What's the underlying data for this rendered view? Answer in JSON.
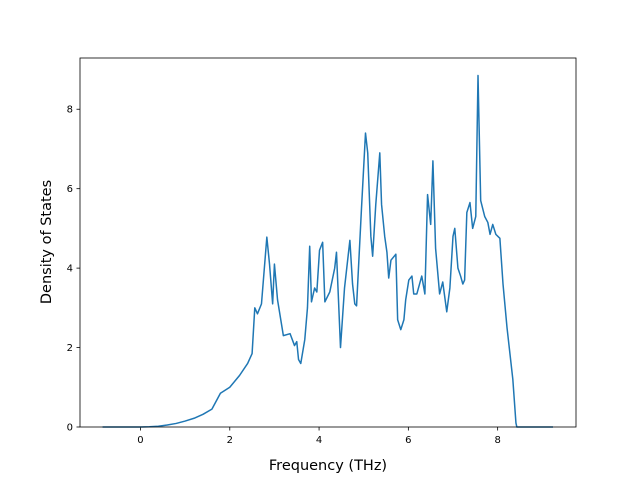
{
  "chart_data": {
    "type": "line",
    "xlabel": "Frequency (THz)",
    "ylabel": "Density of States",
    "xlim": [
      -1.355,
      9.755
    ],
    "ylim": [
      0,
      9.29
    ],
    "xticks": [
      0,
      2,
      4,
      6,
      8
    ],
    "yticks": [
      0,
      2,
      4,
      6,
      8
    ],
    "color": "#1f77b4",
    "x": [
      -0.85,
      -0.4,
      0,
      0.2,
      0.4,
      0.6,
      0.8,
      1.0,
      1.2,
      1.4,
      1.6,
      1.79,
      2.0,
      2.22,
      2.4,
      2.5,
      2.56,
      2.62,
      2.71,
      2.83,
      2.89,
      2.96,
      3.0,
      3.07,
      3.2,
      3.35,
      3.45,
      3.5,
      3.54,
      3.59,
      3.68,
      3.74,
      3.79,
      3.83,
      3.9,
      3.95,
      4.01,
      4.08,
      4.13,
      4.24,
      4.35,
      4.39,
      4.48,
      4.57,
      4.69,
      4.75,
      4.8,
      4.84,
      4.95,
      5.04,
      5.09,
      5.16,
      5.2,
      5.27,
      5.36,
      5.4,
      5.47,
      5.52,
      5.56,
      5.61,
      5.72,
      5.76,
      5.83,
      5.9,
      5.94,
      6.01,
      6.08,
      6.12,
      6.19,
      6.3,
      6.37,
      6.43,
      6.5,
      6.55,
      6.61,
      6.7,
      6.77,
      6.86,
      6.93,
      7.0,
      7.04,
      7.11,
      7.17,
      7.22,
      7.26,
      7.31,
      7.38,
      7.44,
      7.51,
      7.56,
      7.62,
      7.71,
      7.78,
      7.83,
      7.89,
      7.96,
      8.05,
      8.12,
      8.21,
      8.27,
      8.34,
      8.41,
      8.43,
      9.24
    ],
    "values": [
      0,
      0,
      0,
      0.005,
      0.02,
      0.05,
      0.09,
      0.15,
      0.22,
      0.32,
      0.45,
      0.85,
      1.0,
      1.3,
      1.6,
      1.85,
      3.0,
      2.85,
      3.1,
      4.78,
      4.1,
      3.1,
      4.1,
      3.2,
      2.3,
      2.35,
      2.05,
      2.15,
      1.7,
      1.6,
      2.2,
      3.0,
      4.55,
      3.15,
      3.5,
      3.4,
      4.45,
      4.65,
      3.15,
      3.4,
      4.0,
      4.4,
      2.0,
      3.5,
      4.7,
      3.6,
      3.1,
      3.05,
      5.5,
      7.4,
      6.9,
      4.8,
      4.3,
      5.6,
      6.9,
      5.6,
      4.8,
      4.4,
      3.75,
      4.2,
      4.35,
      2.7,
      2.45,
      2.7,
      3.2,
      3.7,
      3.8,
      3.35,
      3.35,
      3.8,
      3.35,
      5.85,
      5.1,
      6.7,
      4.5,
      3.35,
      3.65,
      2.9,
      3.5,
      4.8,
      5.0,
      4.0,
      3.8,
      3.6,
      3.7,
      5.4,
      5.65,
      5.0,
      5.3,
      8.85,
      5.7,
      5.3,
      5.15,
      4.85,
      5.1,
      4.85,
      4.75,
      3.6,
      2.5,
      1.9,
      1.2,
      0.1,
      0,
      0
    ]
  }
}
